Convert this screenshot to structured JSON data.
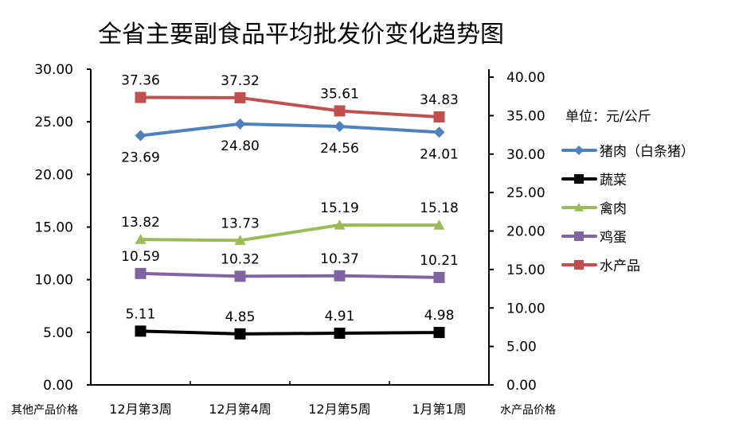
{
  "chart_data": {
    "type": "line",
    "title": "全省主要副食品平均批发价变化趋势图",
    "unit_label": "单位：元/公斤",
    "categories": [
      "12月第3周",
      "12月第4周",
      "12月第5周",
      "1月第1周"
    ],
    "left_axis": {
      "label": "其他产品价格",
      "ylim": [
        0,
        30
      ],
      "ticks": [
        "0.00",
        "5.00",
        "10.00",
        "15.00",
        "20.00",
        "25.00",
        "30.00"
      ]
    },
    "right_axis": {
      "label": "水产品价格",
      "ylim": [
        0,
        40
      ],
      "ticks": [
        "0.00",
        "5.00",
        "10.00",
        "15.00",
        "20.00",
        "25.00",
        "30.00",
        "35.00",
        "40.00"
      ]
    },
    "legend_position": "right",
    "series": [
      {
        "name": "猪肉（白条猪）",
        "axis": "left",
        "color": "#4f81bd",
        "marker": "diamond",
        "values": [
          23.69,
          24.8,
          24.56,
          24.01
        ],
        "labels": [
          "23.69",
          "24.80",
          "24.56",
          "24.01"
        ],
        "label_pos": "below"
      },
      {
        "name": "蔬菜",
        "axis": "left",
        "color": "#000000",
        "marker": "square",
        "values": [
          5.11,
          4.85,
          4.91,
          4.98
        ],
        "labels": [
          "5.11",
          "4.85",
          "4.91",
          "4.98"
        ],
        "label_pos": "above"
      },
      {
        "name": "禽肉",
        "axis": "left",
        "color": "#9bbb59",
        "marker": "triangle",
        "values": [
          13.82,
          13.73,
          15.19,
          15.18
        ],
        "labels": [
          "13.82",
          "13.73",
          "15.19",
          "15.18"
        ],
        "label_pos": "above"
      },
      {
        "name": "鸡蛋",
        "axis": "left",
        "color": "#8064a2",
        "marker": "square",
        "values": [
          10.59,
          10.32,
          10.37,
          10.21
        ],
        "labels": [
          "10.59",
          "10.32",
          "10.37",
          "10.21"
        ],
        "label_pos": "above"
      },
      {
        "name": "水产品",
        "axis": "right",
        "color": "#c0504d",
        "marker": "square",
        "values": [
          37.36,
          37.32,
          35.61,
          34.83
        ],
        "labels": [
          "37.36",
          "37.32",
          "35.61",
          "34.83"
        ],
        "label_pos": "above"
      }
    ]
  }
}
